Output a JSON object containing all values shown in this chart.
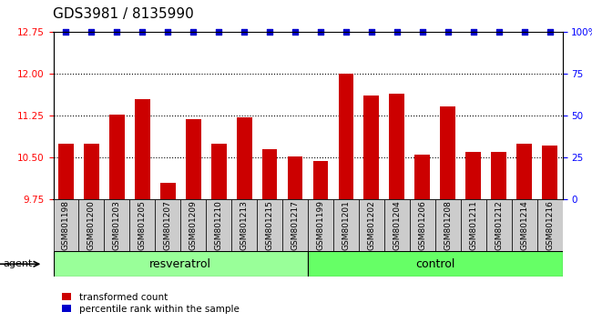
{
  "title": "GDS3981 / 8135990",
  "samples": [
    "GSM801198",
    "GSM801200",
    "GSM801203",
    "GSM801205",
    "GSM801207",
    "GSM801209",
    "GSM801210",
    "GSM801213",
    "GSM801215",
    "GSM801217",
    "GSM801199",
    "GSM801201",
    "GSM801202",
    "GSM801204",
    "GSM801206",
    "GSM801208",
    "GSM801211",
    "GSM801212",
    "GSM801214",
    "GSM801216"
  ],
  "values": [
    10.75,
    10.75,
    11.28,
    11.55,
    10.05,
    11.2,
    10.75,
    11.22,
    10.65,
    10.52,
    10.45,
    12.0,
    11.62,
    11.65,
    10.55,
    11.42,
    10.6,
    10.6,
    10.75,
    10.72
  ],
  "bar_color": "#cc0000",
  "percentile_color": "#0000cc",
  "ylim_left": [
    9.75,
    12.75
  ],
  "ylim_right": [
    0,
    100
  ],
  "yticks_left": [
    9.75,
    10.5,
    11.25,
    12.0,
    12.75
  ],
  "yticks_right": [
    0,
    25,
    50,
    75,
    100
  ],
  "ytick_labels_right": [
    "0",
    "25",
    "50",
    "75",
    "100%"
  ],
  "grid_values": [
    10.5,
    11.25,
    12.0
  ],
  "n_resveratrol": 10,
  "n_control": 10,
  "group_label_resveratrol": "resveratrol",
  "group_label_control": "control",
  "agent_label": "agent",
  "legend_bar": "transformed count",
  "legend_percentile": "percentile rank within the sample",
  "bar_width": 0.6,
  "sample_area_color": "#cccccc",
  "resveratrol_color": "#99ff99",
  "control_color": "#66ff66",
  "title_fontsize": 11,
  "tick_fontsize": 7.5
}
